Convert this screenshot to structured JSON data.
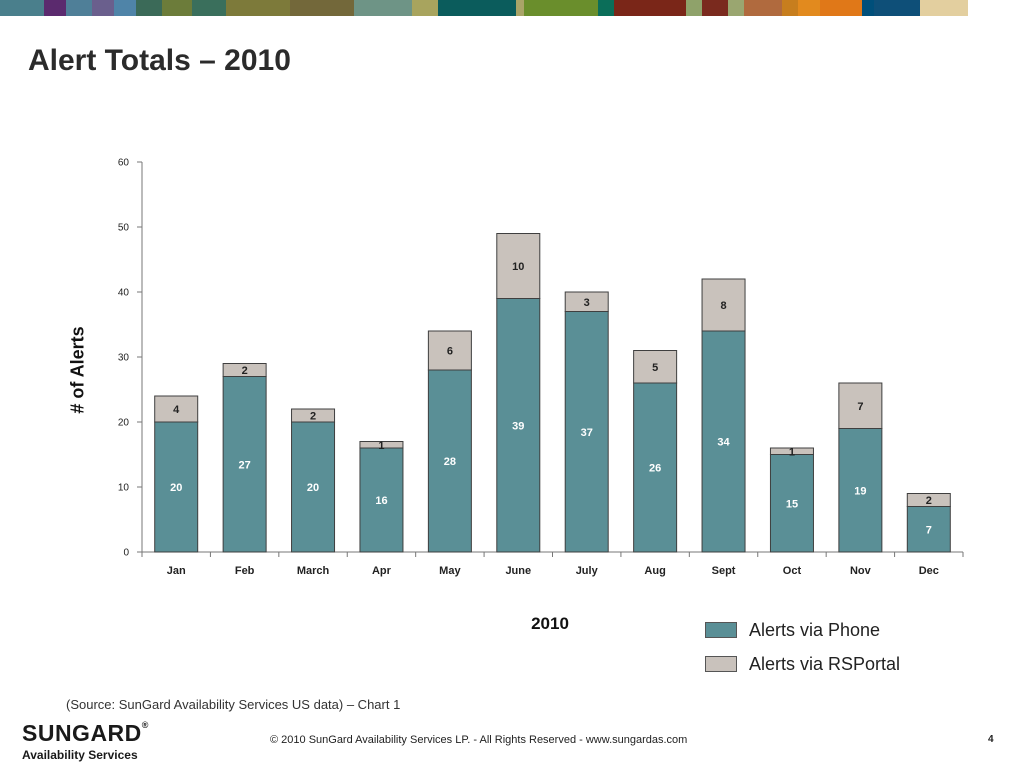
{
  "slide": {
    "title": "Alert Totals – 2010",
    "source_note": "(Source: SunGard Availability Services US data) – Chart 1",
    "footer": "© 2010 SunGard Availability Services LP. - All Rights Reserved - www.sungardas.com",
    "page_number": "4",
    "logo_name": "SUNGARD",
    "logo_registered": "®",
    "logo_sub": "Availability Services"
  },
  "header_colors": [
    "#4a7f8c",
    "#5b2a6e",
    "#4f7f98",
    "#6a5f8d",
    "#4f84a8",
    "#3b6a58",
    "#6c7c3a",
    "#3a6f5c",
    "#7d7a3a",
    "#73683a",
    "#6e9486",
    "#a8a45e",
    "#0b5c5c",
    "#a9a468",
    "#6a8e2c",
    "#0b6e59",
    "#7a2618",
    "#8fa26a",
    "#7a2a1e",
    "#9aa670",
    "#b06a3e",
    "#c77e1e",
    "#e28a1e",
    "#e07818",
    "#004f7a",
    "#0e4f78",
    "#e3cf9f"
  ],
  "chart_data": {
    "type": "bar",
    "stacked": true,
    "categories": [
      "Jan",
      "Feb",
      "March",
      "Apr",
      "May",
      "June",
      "July",
      "Aug",
      "Sept",
      "Oct",
      "Nov",
      "Dec"
    ],
    "series": [
      {
        "name": "Alerts via Phone",
        "color": "#5a8f96",
        "values": [
          20,
          27,
          20,
          16,
          28,
          39,
          37,
          26,
          34,
          15,
          19,
          7
        ]
      },
      {
        "name": "Alerts via RSPortal",
        "color": "#c9c2bc",
        "values": [
          4,
          2,
          2,
          1,
          6,
          10,
          3,
          5,
          8,
          1,
          7,
          2
        ]
      }
    ],
    "xlabel": "2010",
    "ylabel": "# of Alerts",
    "ylim": [
      0,
      60
    ],
    "yticks": [
      0,
      10,
      20,
      30,
      40,
      50,
      60
    ],
    "grid": false,
    "legend": "bottom-right"
  }
}
